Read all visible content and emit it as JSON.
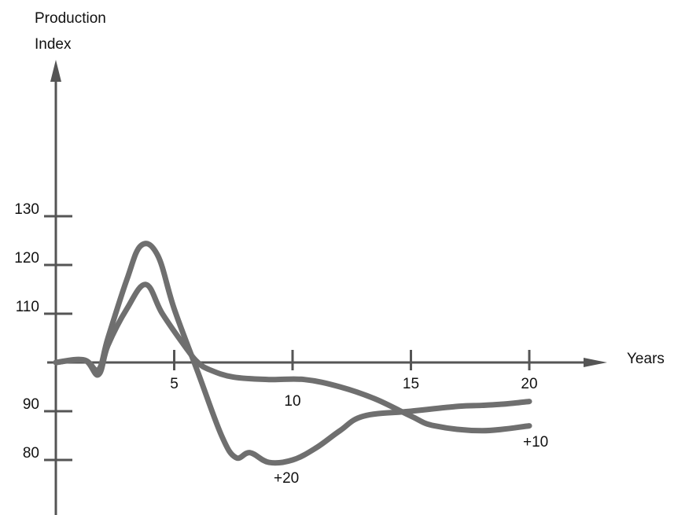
{
  "chart_data": {
    "type": "line",
    "title": "",
    "ylabel_line1": "Production",
    "ylabel_line2": "Index",
    "xlabel": "Years",
    "xlim": [
      0,
      23
    ],
    "ylim": [
      75,
      150
    ],
    "baseline": 100,
    "x_ticks": [
      5,
      10,
      15,
      20
    ],
    "x_tick_labels": [
      "5",
      "10",
      "15",
      "20"
    ],
    "y_ticks": [
      80,
      90,
      110,
      120,
      130
    ],
    "y_tick_labels": [
      "80",
      "90",
      "110",
      "120",
      "130"
    ],
    "grid": false,
    "legend": "none",
    "line_color": "#6f6f6f",
    "axis_color": "#555555",
    "series": [
      {
        "name": "+20",
        "x": [
          0,
          1.2,
          1.8,
          2.2,
          3.0,
          3.6,
          4.3,
          5.0,
          6.0,
          7.0,
          7.6,
          8.2,
          9.0,
          10.0,
          11.0,
          12.0,
          13.0,
          15.0,
          17.0,
          18.0,
          19.0,
          20.0
        ],
        "y": [
          100,
          100.5,
          98.5,
          105,
          117,
          124,
          122,
          111,
          98,
          85,
          80.5,
          81.5,
          79.5,
          80,
          82.5,
          86,
          89,
          90,
          91,
          91.2,
          91.5,
          92
        ]
      },
      {
        "name": "+10",
        "x": [
          0,
          1.2,
          1.8,
          2.2,
          3.0,
          3.8,
          4.5,
          5.5,
          6.0,
          6.5,
          7.5,
          9.0,
          10.5,
          12.0,
          13.5,
          15.0,
          16.0,
          18.0,
          20.0
        ],
        "y": [
          100,
          100.5,
          97.5,
          103.5,
          111,
          116,
          110,
          103,
          100,
          98.5,
          97,
          96.5,
          96.5,
          95,
          92.5,
          89,
          87,
          86,
          87
        ]
      }
    ]
  }
}
